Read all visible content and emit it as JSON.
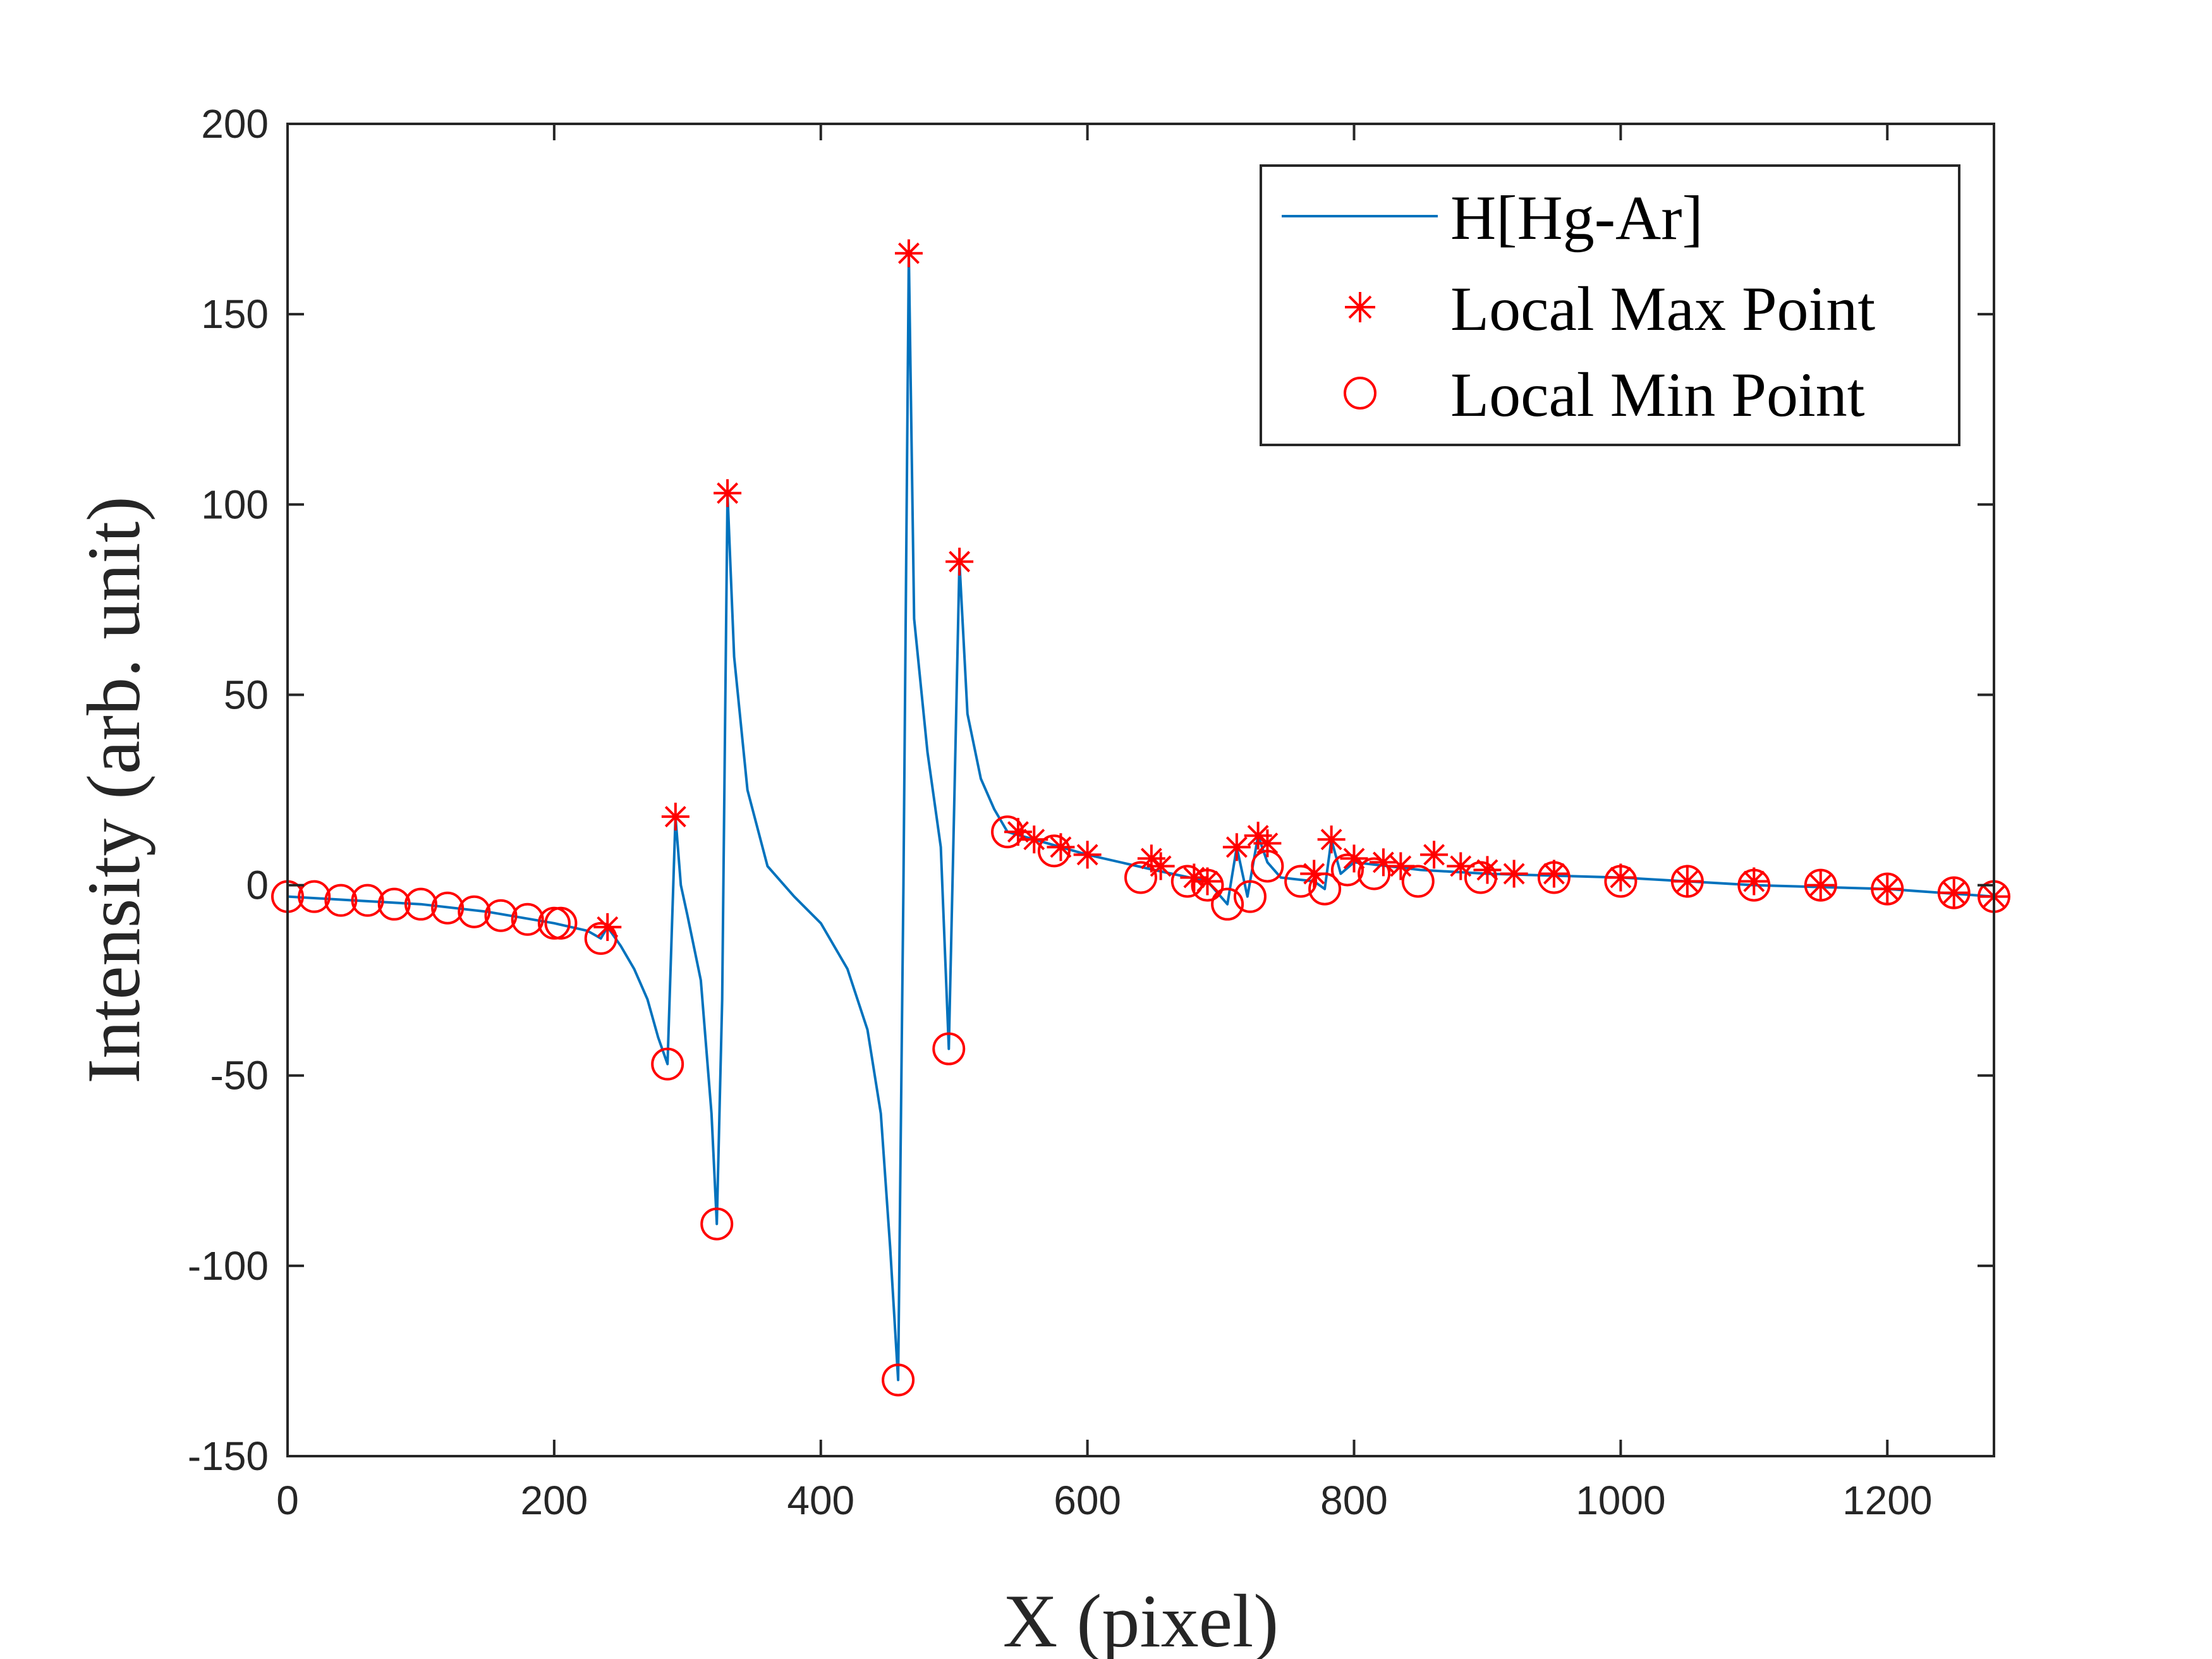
{
  "chart_data": {
    "type": "line",
    "title": "",
    "xlabel": "X (pixel)",
    "ylabel": "Intensity (arb. unit)",
    "xlim": [
      0,
      1280
    ],
    "ylim": [
      -150,
      200
    ],
    "xticks": [
      0,
      200,
      400,
      600,
      800,
      1000,
      1200
    ],
    "yticks": [
      -150,
      -100,
      -50,
      0,
      50,
      100,
      150,
      200
    ],
    "grid": false,
    "legend_position": "top-right",
    "legend": [
      "H[Hg-Ar]",
      "Local Max Point",
      "Local Min Point"
    ],
    "colors": {
      "line": "#0072bd",
      "markers": "#ff0000",
      "axes": "#262626"
    },
    "series": [
      {
        "name": "H[Hg-Ar]",
        "type": "line",
        "x": [
          0,
          50,
          100,
          150,
          200,
          225,
          235,
          240,
          250,
          260,
          270,
          278,
          285,
          291,
          295,
          300,
          310,
          318,
          322,
          326,
          330,
          335,
          345,
          360,
          380,
          400,
          420,
          435,
          445,
          452,
          458,
          462,
          466,
          470,
          480,
          490,
          496,
          500,
          504,
          510,
          520,
          530,
          540,
          560,
          600,
          650,
          690,
          705,
          712,
          720,
          728,
          735,
          745,
          770,
          778,
          783,
          790,
          800,
          850,
          900,
          1000,
          1100,
          1200,
          1280
        ],
        "y": [
          -3,
          -4,
          -5,
          -7,
          -10,
          -12,
          -14,
          -11,
          -16,
          -22,
          -30,
          -40,
          -47,
          18,
          0,
          -8,
          -25,
          -60,
          -89,
          -30,
          103,
          60,
          25,
          5,
          -3,
          -10,
          -22,
          -38,
          -60,
          -95,
          -130,
          0,
          166,
          70,
          35,
          10,
          -43,
          20,
          85,
          45,
          28,
          20,
          14,
          12,
          8,
          4,
          1,
          -5,
          10,
          -3,
          13,
          6,
          2,
          1,
          -1,
          12,
          3,
          6,
          4,
          3,
          2,
          0,
          -1,
          -3
        ]
      },
      {
        "name": "Local Max Point",
        "type": "scatter",
        "marker": "asterisk",
        "x": [
          240,
          291,
          330,
          466,
          504,
          548,
          560,
          580,
          600,
          648,
          655,
          680,
          690,
          712,
          728,
          735,
          770,
          783,
          800,
          822,
          835,
          860,
          880,
          900,
          920,
          950,
          1000,
          1050,
          1100,
          1150,
          1200,
          1250,
          1280
        ],
        "y": [
          -11,
          18,
          103,
          166,
          85,
          14,
          12,
          10,
          8,
          7,
          5,
          2,
          1,
          10,
          13,
          11,
          3,
          12,
          7,
          6,
          5,
          8,
          5,
          4,
          3,
          3,
          2,
          1,
          1,
          0,
          -1,
          -2,
          -3
        ]
      },
      {
        "name": "Local Min Point",
        "type": "scatter",
        "marker": "circle",
        "x": [
          0,
          20,
          40,
          60,
          80,
          100,
          120,
          140,
          160,
          180,
          200,
          205,
          235,
          285,
          322,
          458,
          496,
          540,
          575,
          640,
          675,
          690,
          705,
          722,
          735,
          760,
          778,
          795,
          815,
          848,
          895,
          950,
          1000,
          1050,
          1100,
          1150,
          1200,
          1250,
          1280
        ],
        "y": [
          -3,
          -3,
          -4,
          -4,
          -5,
          -5,
          -6,
          -7,
          -8,
          -9,
          -10,
          -10,
          -14,
          -47,
          -89,
          -130,
          -43,
          14,
          9,
          2,
          1,
          0,
          -5,
          -3,
          5,
          1,
          -1,
          4,
          3,
          1,
          2,
          2,
          1,
          1,
          0,
          0,
          -1,
          -2,
          -3
        ]
      }
    ]
  }
}
